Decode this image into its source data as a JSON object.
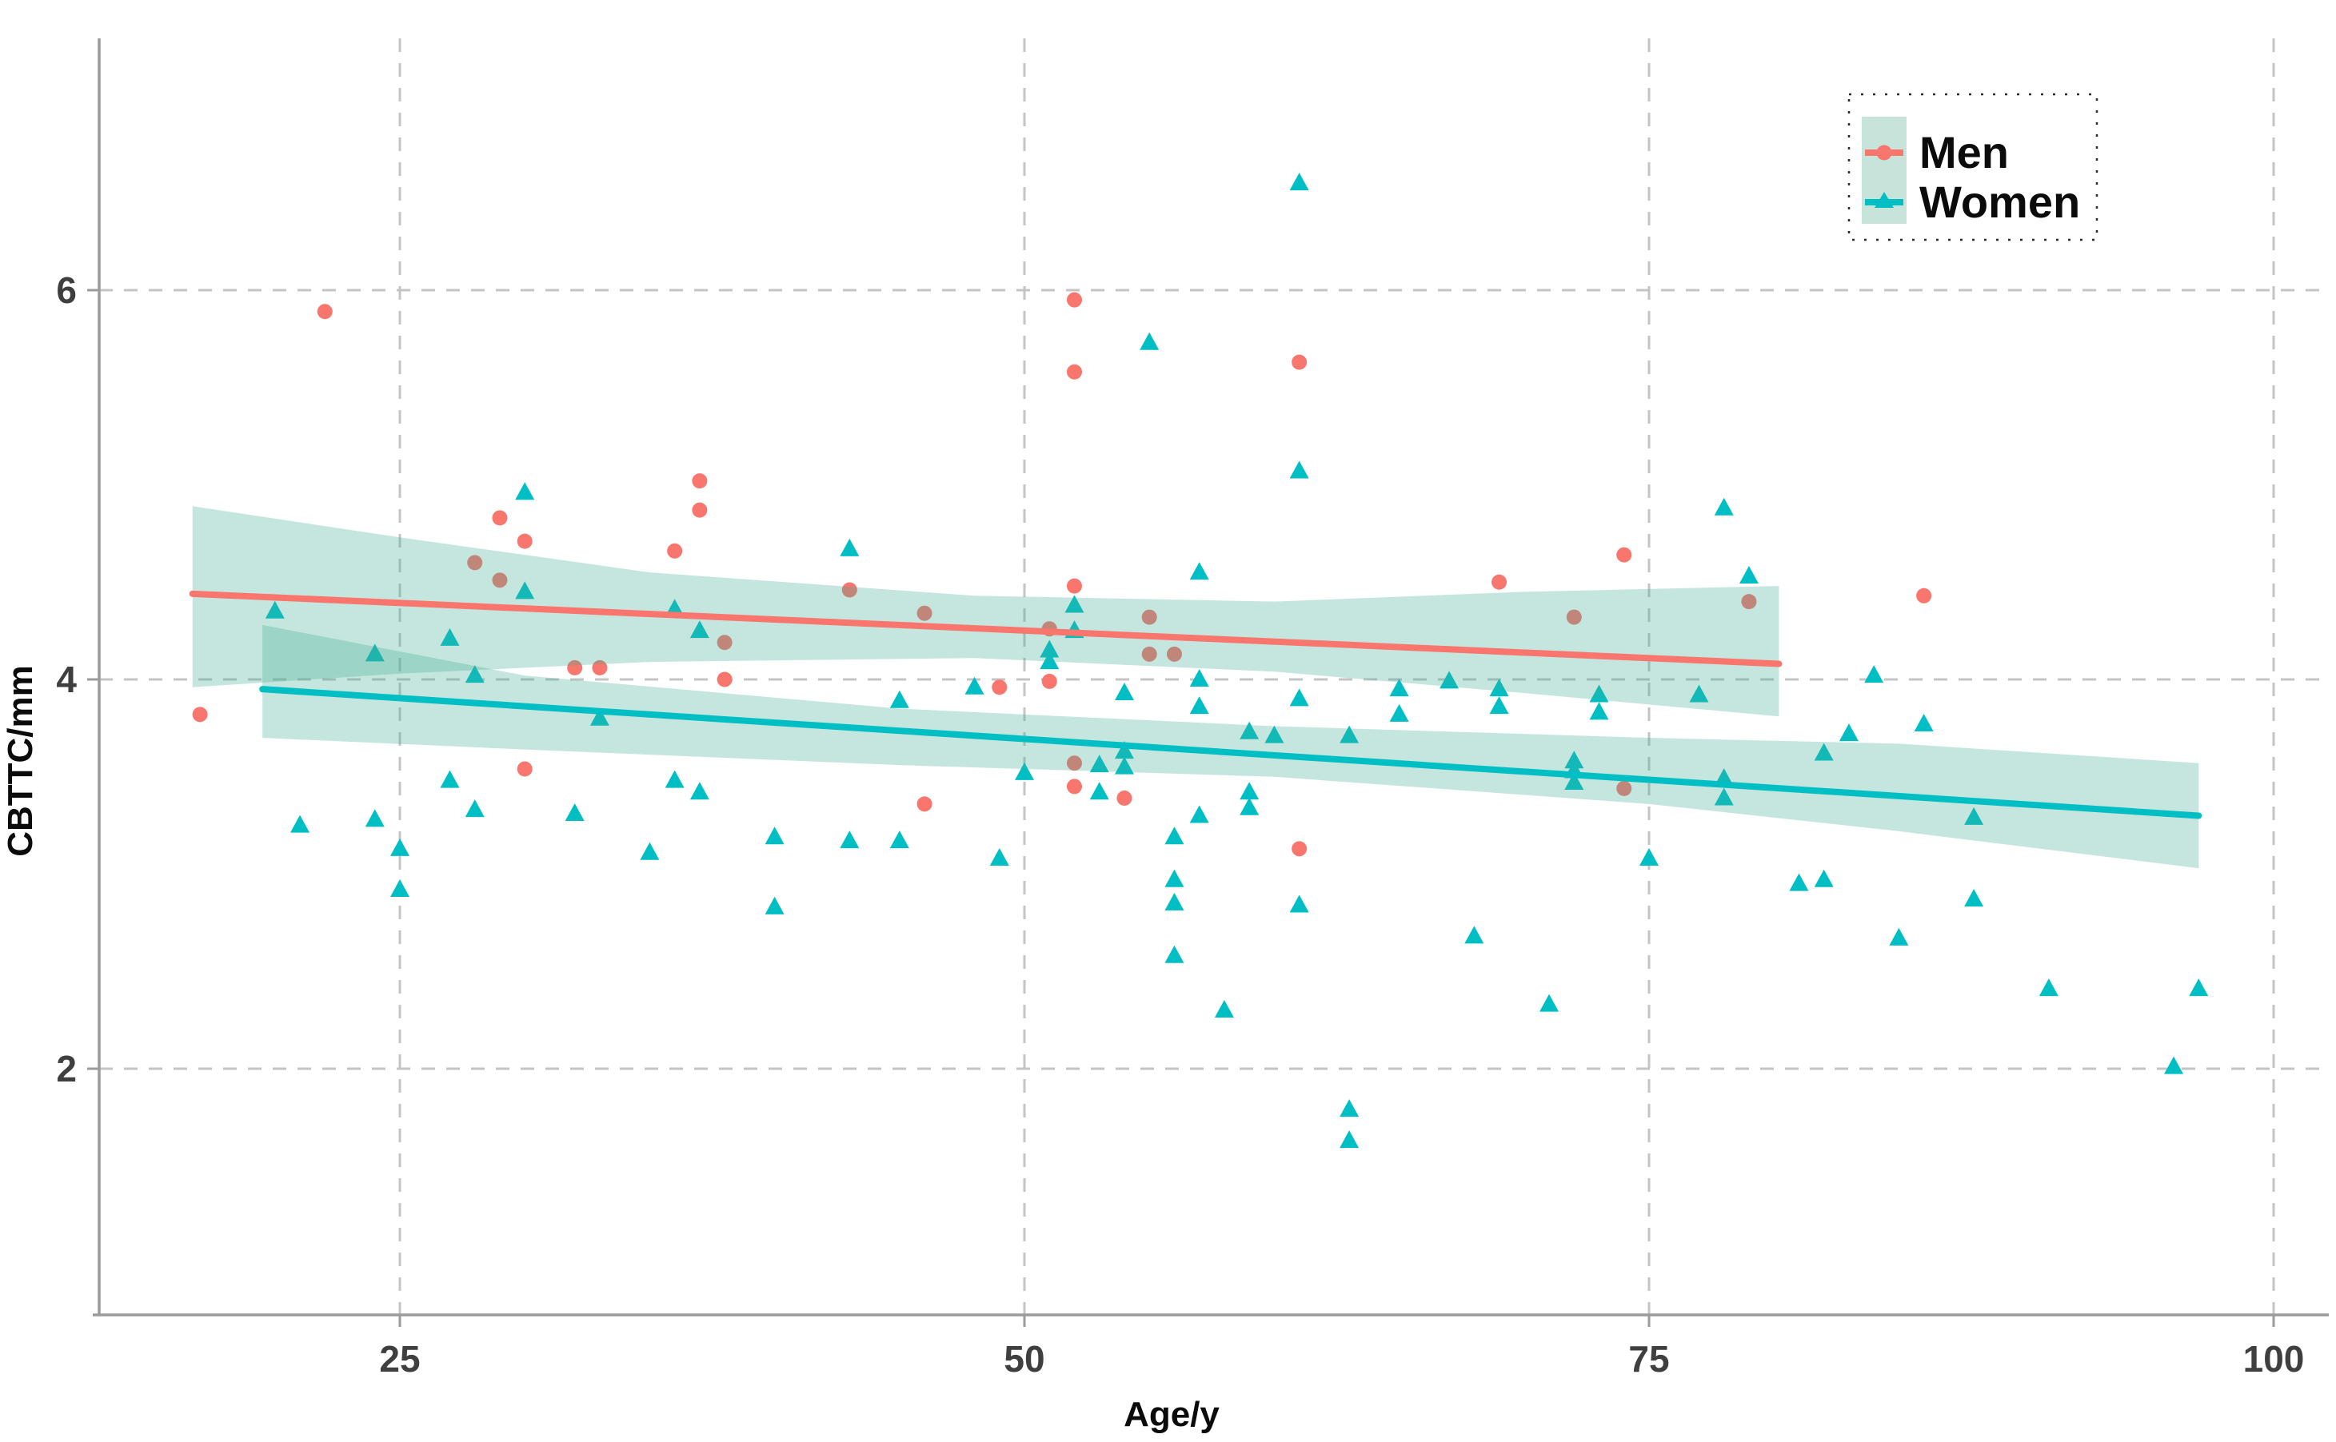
{
  "chart_data": {
    "type": "scatter",
    "title": "",
    "xlabel": "Age/y",
    "ylabel": "CBTTC/mm",
    "x_ticks": [
      25,
      50,
      75,
      100
    ],
    "y_ticks": [
      6,
      4,
      2
    ],
    "x_tick_labels": [
      "25",
      "50",
      "75",
      "100"
    ],
    "y_tick_labels": [
      "6",
      "4",
      "2"
    ],
    "xlim": [
      13,
      102
    ],
    "ylim": [
      0.74,
      7.29
    ],
    "grid": "dashed",
    "colors": {
      "men": "#F8766D",
      "women": "#00BFC4",
      "ci_ribbon": "rgba(64,172,149,0.30)",
      "legend_swatch": "#C6E4DA",
      "gridline": "#c4c4c4",
      "spine": "#9b9b9b"
    },
    "legend": {
      "position": "top-right",
      "entries": [
        {
          "label": "Men",
          "marker": "circle",
          "color": "#F8766D"
        },
        {
          "label": "Women",
          "marker": "triangle",
          "color": "#00BFC4"
        }
      ]
    },
    "series": [
      {
        "name": "Men",
        "marker": "circle",
        "color": "#F8766D",
        "trend": {
          "x1": 16.7,
          "y1": 4.44,
          "x2": 80.2,
          "y2": 4.08
        },
        "ci_ribbon": {
          "x": [
            16.7,
            25,
            35,
            48,
            60,
            70,
            80.2
          ],
          "upper": [
            4.89,
            4.73,
            4.55,
            4.43,
            4.4,
            4.45,
            4.48
          ],
          "lower": [
            3.96,
            4.03,
            4.09,
            4.11,
            4.04,
            3.93,
            3.81
          ]
        },
        "points": [
          [
            17,
            3.82
          ],
          [
            22,
            5.89
          ],
          [
            28,
            4.6
          ],
          [
            29,
            4.83
          ],
          [
            29,
            4.51
          ],
          [
            30,
            4.71
          ],
          [
            30,
            3.54
          ],
          [
            32,
            4.06
          ],
          [
            33,
            4.06
          ],
          [
            36,
            4.66
          ],
          [
            37,
            5.02
          ],
          [
            37,
            4.87
          ],
          [
            38,
            4.19
          ],
          [
            38,
            4.0
          ],
          [
            43,
            4.46
          ],
          [
            46,
            4.34
          ],
          [
            46,
            3.36
          ],
          [
            49,
            3.96
          ],
          [
            51,
            4.26
          ],
          [
            51,
            3.99
          ],
          [
            52,
            5.95
          ],
          [
            52,
            5.58
          ],
          [
            52,
            4.48
          ],
          [
            52,
            3.57
          ],
          [
            52,
            3.45
          ],
          [
            54,
            3.39
          ],
          [
            55,
            4.32
          ],
          [
            55,
            4.13
          ],
          [
            56,
            4.13
          ],
          [
            61,
            5.63
          ],
          [
            61,
            3.13
          ],
          [
            69,
            4.5
          ],
          [
            72,
            4.32
          ],
          [
            74,
            4.64
          ],
          [
            74,
            3.44
          ],
          [
            79,
            4.4
          ],
          [
            86,
            4.43
          ]
        ]
      },
      {
        "name": "Women",
        "marker": "triangle",
        "color": "#00BFC4",
        "trend": {
          "x1": 19.5,
          "y1": 3.95,
          "x2": 97,
          "y2": 3.3
        },
        "ci_ribbon": {
          "x": [
            19.5,
            30,
            45,
            60,
            75,
            85,
            97
          ],
          "upper": [
            4.28,
            4.02,
            3.85,
            3.76,
            3.7,
            3.67,
            3.57
          ],
          "lower": [
            3.7,
            3.64,
            3.56,
            3.5,
            3.36,
            3.22,
            3.03
          ]
        },
        "points": [
          [
            20,
            4.35
          ],
          [
            21,
            3.25
          ],
          [
            24,
            4.13
          ],
          [
            24,
            3.28
          ],
          [
            25,
            3.13
          ],
          [
            25,
            2.92
          ],
          [
            27,
            4.21
          ],
          [
            27,
            3.48
          ],
          [
            28,
            4.02
          ],
          [
            28,
            3.33
          ],
          [
            30,
            4.96
          ],
          [
            30,
            4.45
          ],
          [
            32,
            3.31
          ],
          [
            33,
            3.8
          ],
          [
            35,
            3.11
          ],
          [
            36,
            4.36
          ],
          [
            36,
            3.48
          ],
          [
            37,
            4.25
          ],
          [
            37,
            3.42
          ],
          [
            40,
            3.19
          ],
          [
            40,
            2.83
          ],
          [
            43,
            4.67
          ],
          [
            43,
            3.17
          ],
          [
            45,
            3.89
          ],
          [
            45,
            3.17
          ],
          [
            48,
            3.96
          ],
          [
            49,
            3.08
          ],
          [
            50,
            3.52
          ],
          [
            51,
            4.15
          ],
          [
            51,
            4.09
          ],
          [
            52,
            4.38
          ],
          [
            52,
            4.25
          ],
          [
            53,
            3.56
          ],
          [
            53,
            3.42
          ],
          [
            54,
            3.93
          ],
          [
            54,
            3.63
          ],
          [
            54,
            3.55
          ],
          [
            55,
            5.73
          ],
          [
            56,
            3.19
          ],
          [
            56,
            2.97
          ],
          [
            56,
            2.85
          ],
          [
            56,
            2.58
          ],
          [
            57,
            4.55
          ],
          [
            57,
            4.0
          ],
          [
            57,
            3.86
          ],
          [
            57,
            3.3
          ],
          [
            58,
            2.3
          ],
          [
            59,
            3.73
          ],
          [
            59,
            3.42
          ],
          [
            59,
            3.34
          ],
          [
            60,
            3.71
          ],
          [
            61,
            6.55
          ],
          [
            61,
            5.07
          ],
          [
            61,
            3.9
          ],
          [
            61,
            2.84
          ],
          [
            63,
            3.71
          ],
          [
            63,
            1.79
          ],
          [
            63,
            1.63
          ],
          [
            65,
            3.95
          ],
          [
            65,
            3.82
          ],
          [
            67,
            3.99
          ],
          [
            68,
            2.68
          ],
          [
            69,
            3.95
          ],
          [
            69,
            3.86
          ],
          [
            71,
            2.33
          ],
          [
            72,
            3.58
          ],
          [
            72,
            3.53
          ],
          [
            72,
            3.47
          ],
          [
            73,
            3.92
          ],
          [
            73,
            3.83
          ],
          [
            75,
            3.08
          ],
          [
            77,
            3.92
          ],
          [
            78,
            4.88
          ],
          [
            78,
            3.49
          ],
          [
            78,
            3.39
          ],
          [
            79,
            4.53
          ],
          [
            81,
            2.95
          ],
          [
            82,
            3.62
          ],
          [
            82,
            2.97
          ],
          [
            83,
            3.72
          ],
          [
            84,
            4.02
          ],
          [
            85,
            2.67
          ],
          [
            86,
            3.77
          ],
          [
            88,
            3.29
          ],
          [
            88,
            2.87
          ],
          [
            91,
            2.41
          ],
          [
            96,
            2.01
          ],
          [
            97,
            2.41
          ]
        ]
      }
    ]
  }
}
